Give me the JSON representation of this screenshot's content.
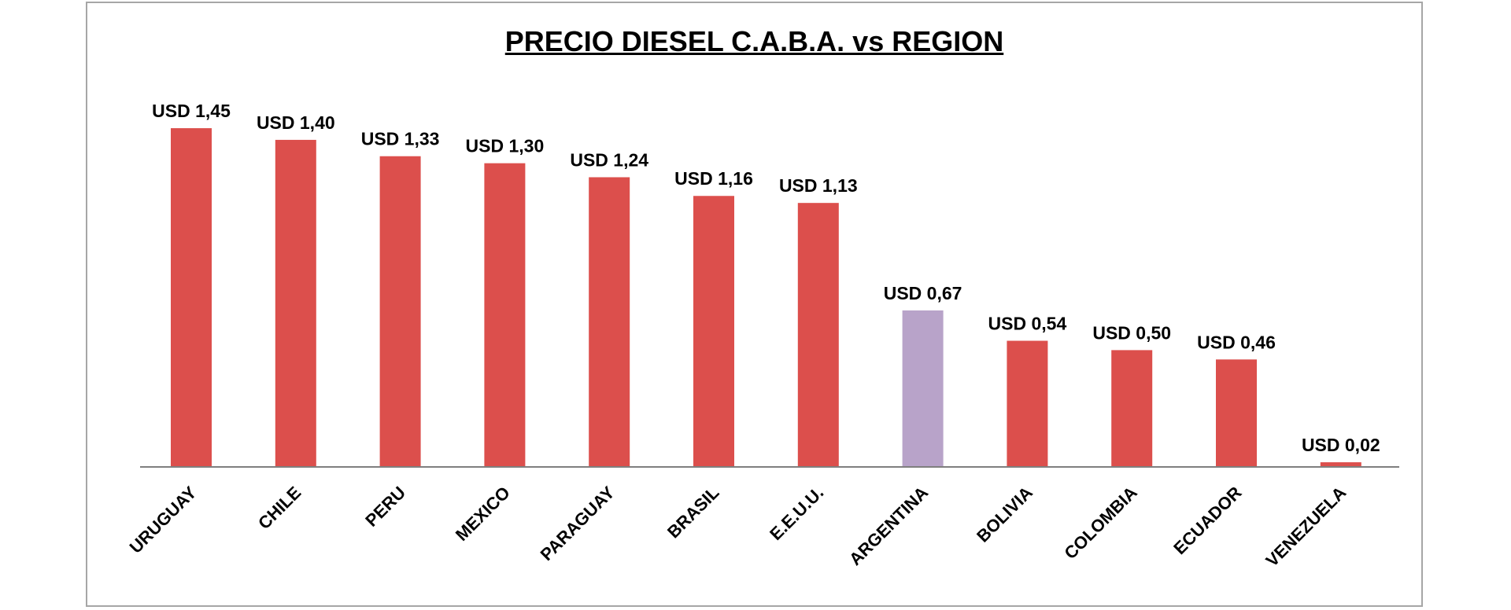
{
  "chart_data": {
    "type": "bar",
    "title": "PRECIO DIESEL C.A.B.A. vs REGION",
    "xlabel": "",
    "ylabel": "",
    "categories": [
      "URUGUAY",
      "CHILE",
      "PERU",
      "MEXICO",
      "PARAGUAY",
      "BRASIL",
      "E.E.U.U.",
      "ARGENTINA",
      "BOLIVIA",
      "COLOMBIA",
      "ECUADOR",
      "VENEZUELA"
    ],
    "values": [
      1.45,
      1.4,
      1.33,
      1.3,
      1.24,
      1.16,
      1.13,
      0.67,
      0.54,
      0.5,
      0.46,
      0.02
    ],
    "data_labels": [
      "USD 1,45",
      "USD 1,40",
      "USD 1,33",
      "USD 1,30",
      "USD 1,24",
      "USD 1,16",
      "USD 1,13",
      "USD 0,67",
      "USD 0,54",
      "USD 0,50",
      "USD 0,46",
      "USD 0,02"
    ],
    "ylim": [
      0,
      1.6
    ],
    "grid": false,
    "legend": "none",
    "colors": {
      "default_bar": "#dc4f4c",
      "highlight_bar": "#b8a3c9",
      "axis": "#7f7f7f"
    },
    "highlight_category": "ARGENTINA"
  }
}
